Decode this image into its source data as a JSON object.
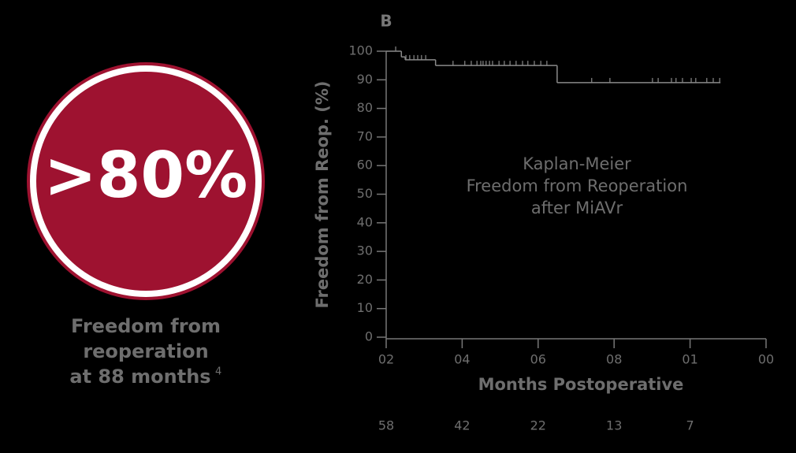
{
  "highlight": {
    "value_text": ">80%",
    "caption": [
      "Freedom from",
      "reoperation",
      "at 88 months"
    ],
    "caption_superscript": "4",
    "fill": "#9e1230"
  },
  "chart_data": {
    "type": "line",
    "panel_label": "B",
    "ylabel": "Freedom from Reop. (%)",
    "xlabel": "Months Postoperative",
    "annotation": [
      "Kaplan-Meier",
      "Freedom from Reoperation",
      "after MiAVr"
    ],
    "xlim": [
      0,
      100
    ],
    "ylim": [
      0,
      100
    ],
    "xticks": [
      {
        "value": 0,
        "label": "02"
      },
      {
        "value": 20,
        "label": "04"
      },
      {
        "value": 40,
        "label": "06"
      },
      {
        "value": 60,
        "label": "08"
      },
      {
        "value": 80,
        "label": "01"
      },
      {
        "value": 100,
        "label": "00"
      }
    ],
    "yticks": [
      0,
      10,
      20,
      30,
      40,
      50,
      60,
      70,
      80,
      90,
      100
    ],
    "series": [
      {
        "color": "#8a8a8a",
        "x": [
          0,
          4,
          5,
          13,
          45,
          88
        ],
        "values": [
          100,
          98,
          97,
          95,
          89,
          89
        ]
      }
    ],
    "censored": {
      "x": [
        2.5,
        5.2,
        6.2,
        7.3,
        8.3,
        9.3,
        10.4,
        17.6,
        20.7,
        22.4,
        23.9,
        24.9,
        25.5,
        26.3,
        27.2,
        28,
        29.7,
        31.1,
        32.6,
        34.2,
        35.9,
        37.3,
        39,
        40.7,
        42.3,
        54.1,
        58.9,
        70.1,
        71.6,
        75.1,
        76.3,
        78,
        80.3,
        81.5,
        84.4,
        86.1,
        87.8
      ],
      "values": [
        100,
        97,
        97,
        97,
        97,
        97,
        97,
        95,
        95,
        95,
        95,
        95,
        95,
        95,
        95,
        95,
        95,
        95,
        95,
        95,
        95,
        95,
        95,
        95,
        95,
        89,
        89,
        89,
        89,
        89,
        89,
        89,
        89,
        89,
        89,
        89,
        89
      ]
    },
    "at_risk": {
      "values": [
        58,
        42,
        22,
        13,
        7
      ]
    }
  }
}
